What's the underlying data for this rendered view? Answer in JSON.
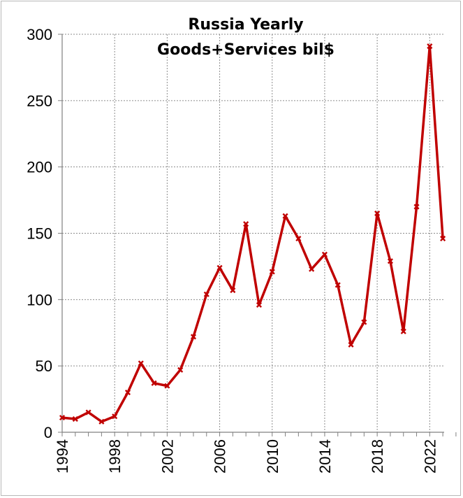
{
  "chart_data": {
    "type": "line",
    "title_lines": [
      "Russia Yearly",
      "Goods+Services bil$"
    ],
    "xlabel": "",
    "ylabel": "",
    "x": [
      1994,
      1995,
      1996,
      1997,
      1998,
      1999,
      2000,
      2001,
      2002,
      2003,
      2004,
      2005,
      2006,
      2007,
      2008,
      2009,
      2010,
      2011,
      2012,
      2013,
      2014,
      2015,
      2016,
      2017,
      2018,
      2019,
      2020,
      2021,
      2022,
      2023
    ],
    "series": [
      {
        "color": "#c00000",
        "values": [
          11,
          10,
          15,
          8,
          12,
          30,
          52,
          37,
          35,
          47,
          72,
          104,
          124,
          107,
          157,
          96,
          121,
          163,
          146,
          123,
          134,
          111,
          66,
          83,
          165,
          129,
          76,
          170,
          291,
          146
        ]
      }
    ],
    "xlim": [
      1994,
      2023
    ],
    "ylim": [
      0,
      300
    ],
    "yticks": [
      0,
      50,
      100,
      150,
      200,
      250,
      300
    ],
    "xticks": [
      1994,
      1998,
      2002,
      2006,
      2010,
      2014,
      2018,
      2022
    ],
    "grid": true
  }
}
